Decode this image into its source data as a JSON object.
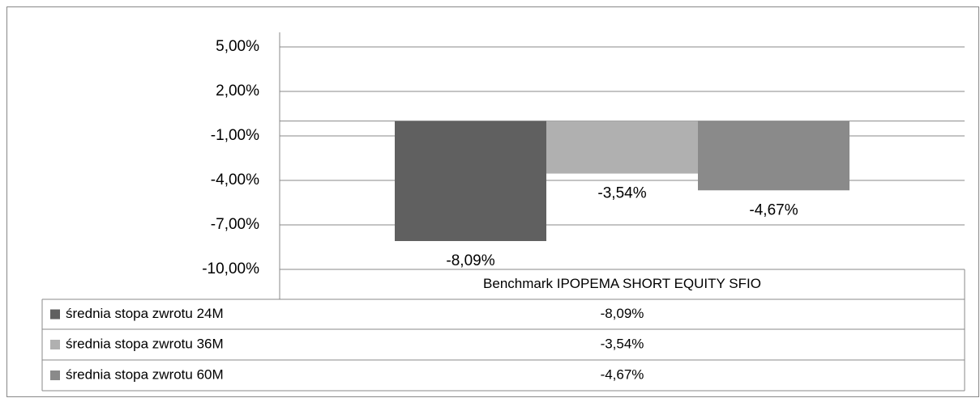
{
  "chart_data": {
    "type": "bar",
    "categories": [
      "Benchmark IPOPEMA SHORT EQUITY SFIO"
    ],
    "series": [
      {
        "name": "średnia stopa zwrotu 24M",
        "color": "#606060",
        "values": [
          -8.09
        ],
        "value_labels": [
          "-8,09%"
        ]
      },
      {
        "name": "średnia stopa zwrotu 36M",
        "color": "#b0b0b0",
        "values": [
          -3.54
        ],
        "value_labels": [
          "-3,54%"
        ]
      },
      {
        "name": "średnia stopa zwrotu 60M",
        "color": "#8a8a8a",
        "values": [
          -4.67
        ],
        "value_labels": [
          "-4,67%"
        ]
      }
    ],
    "ylim": [
      -10,
      5
    ],
    "yticks": [
      {
        "value": -10,
        "label": "-10,00%"
      },
      {
        "value": -7,
        "label": "-7,00%"
      },
      {
        "value": -4,
        "label": "-4,00%"
      },
      {
        "value": -1,
        "label": "-1,00%"
      },
      {
        "value": 2,
        "label": "2,00%"
      },
      {
        "value": 5,
        "label": "5,00%"
      }
    ],
    "grid": true,
    "data_table": true
  }
}
